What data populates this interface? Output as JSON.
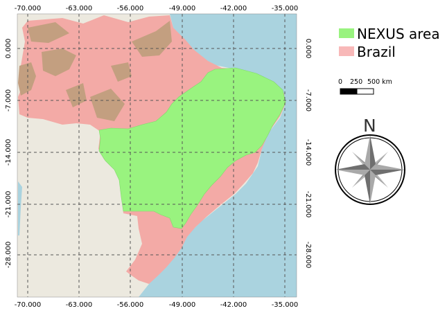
{
  "map": {
    "x_ticks": [
      "-70.000",
      "-63.000",
      "-56.000",
      "-49.000",
      "-42.000",
      "-35.000"
    ],
    "y_ticks": [
      "0.000",
      "-7.000",
      "-14.000",
      "-21.000",
      "-28.000"
    ]
  },
  "legend": {
    "items": [
      {
        "label": "NEXUS area",
        "color": "#99f37f"
      },
      {
        "label": "Brazil",
        "color": "#f8b8b8"
      }
    ]
  },
  "scalebar": {
    "labels": [
      "0",
      "250",
      "500 km"
    ]
  },
  "north_arrow": {
    "label": "N",
    "icon": "compass-rose-icon"
  },
  "colors": {
    "ocean": "#aad3df",
    "land": "#ece9df",
    "brazil": "#f3aaa6",
    "nexus": "#99f37f",
    "forest_brown": "#c39f80",
    "grid": "#555555"
  }
}
